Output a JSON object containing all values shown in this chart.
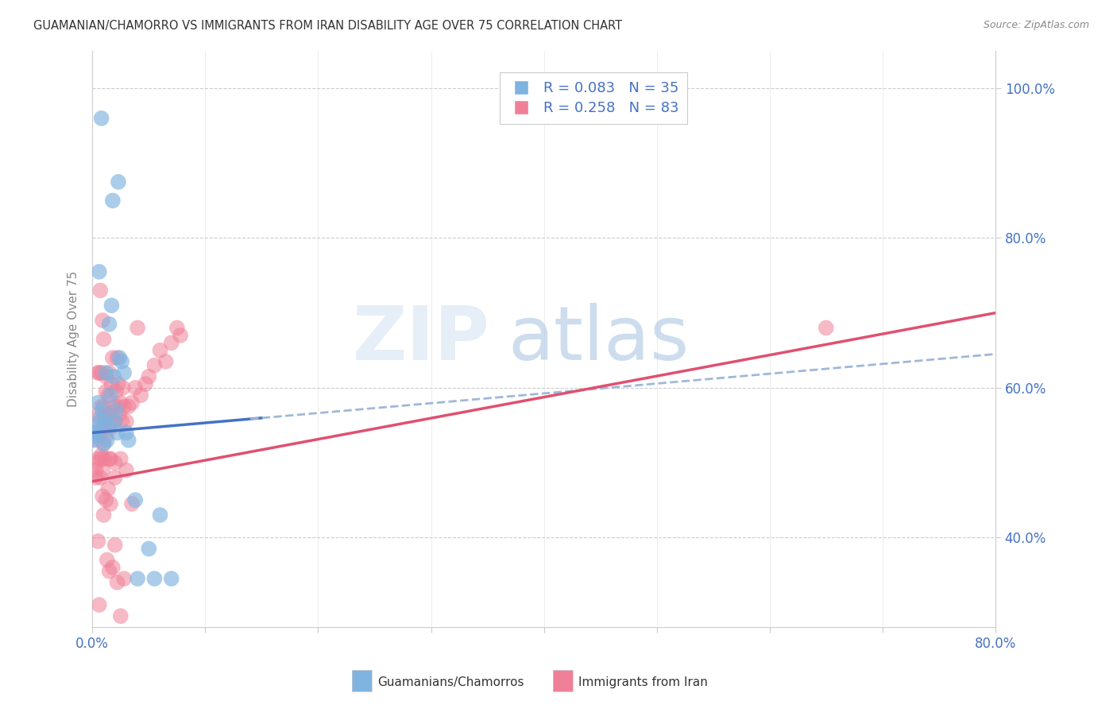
{
  "title": "GUAMANIAN/CHAMORRO VS IMMIGRANTS FROM IRAN DISABILITY AGE OVER 75 CORRELATION CHART",
  "source": "Source: ZipAtlas.com",
  "ylabel": "Disability Age Over 75",
  "legend_label1": "Guamanians/Chamorros",
  "legend_label2": "Immigrants from Iran",
  "legend_r1": "R = 0.083",
  "legend_n1": "N = 35",
  "legend_r2": "R = 0.258",
  "legend_n2": "N = 83",
  "xlim": [
    0.0,
    0.8
  ],
  "ylim": [
    0.28,
    1.05
  ],
  "yticks": [
    0.4,
    0.6,
    0.8,
    1.0
  ],
  "xticks": [
    0.0,
    0.1,
    0.2,
    0.3,
    0.4,
    0.5,
    0.6,
    0.7,
    0.8
  ],
  "color_blue": "#7fb3e0",
  "color_pink": "#f08098",
  "color_blue_line": "#4472c4",
  "color_pink_line": "#e05070",
  "color_blue_dash": "#a0b8d8",
  "watermark_zip": "ZIP",
  "watermark_atlas": "atlas",
  "blue_scatter_x": [
    0.005,
    0.008,
    0.018,
    0.006,
    0.012,
    0.015,
    0.014,
    0.013,
    0.01,
    0.011,
    0.016,
    0.009,
    0.007,
    0.004,
    0.003,
    0.002,
    0.001,
    0.0,
    0.021,
    0.022,
    0.026,
    0.028,
    0.032,
    0.038,
    0.04,
    0.05,
    0.055,
    0.06,
    0.07,
    0.023,
    0.017,
    0.019,
    0.02,
    0.024,
    0.03
  ],
  "blue_scatter_y": [
    0.58,
    0.96,
    0.85,
    0.755,
    0.62,
    0.685,
    0.55,
    0.53,
    0.525,
    0.555,
    0.59,
    0.57,
    0.56,
    0.55,
    0.54,
    0.54,
    0.535,
    0.53,
    0.57,
    0.54,
    0.635,
    0.62,
    0.53,
    0.45,
    0.345,
    0.385,
    0.345,
    0.43,
    0.345,
    0.875,
    0.71,
    0.615,
    0.555,
    0.64,
    0.54
  ],
  "pink_scatter_x": [
    0.003,
    0.004,
    0.005,
    0.006,
    0.006,
    0.007,
    0.007,
    0.008,
    0.008,
    0.009,
    0.009,
    0.01,
    0.01,
    0.011,
    0.011,
    0.012,
    0.012,
    0.013,
    0.014,
    0.015,
    0.015,
    0.016,
    0.017,
    0.018,
    0.018,
    0.019,
    0.02,
    0.021,
    0.022,
    0.022,
    0.023,
    0.024,
    0.025,
    0.026,
    0.027,
    0.028,
    0.03,
    0.032,
    0.035,
    0.038,
    0.04,
    0.043,
    0.047,
    0.05,
    0.055,
    0.06,
    0.065,
    0.07,
    0.075,
    0.078,
    0.65,
    0.01,
    0.005,
    0.008,
    0.012,
    0.007,
    0.009,
    0.006,
    0.011,
    0.004,
    0.003,
    0.014,
    0.016,
    0.013,
    0.02,
    0.018,
    0.022,
    0.015,
    0.025,
    0.03,
    0.035,
    0.028,
    0.02,
    0.015,
    0.01,
    0.008,
    0.005,
    0.006,
    0.009,
    0.012,
    0.016,
    0.02,
    0.025
  ],
  "pink_scatter_y": [
    0.49,
    0.53,
    0.505,
    0.535,
    0.565,
    0.48,
    0.555,
    0.51,
    0.575,
    0.49,
    0.545,
    0.525,
    0.575,
    0.505,
    0.565,
    0.535,
    0.595,
    0.555,
    0.59,
    0.545,
    0.62,
    0.565,
    0.605,
    0.555,
    0.64,
    0.575,
    0.555,
    0.595,
    0.575,
    0.64,
    0.605,
    0.565,
    0.58,
    0.555,
    0.6,
    0.575,
    0.555,
    0.575,
    0.58,
    0.6,
    0.68,
    0.59,
    0.605,
    0.615,
    0.63,
    0.65,
    0.635,
    0.66,
    0.68,
    0.67,
    0.68,
    0.665,
    0.62,
    0.62,
    0.615,
    0.73,
    0.69,
    0.62,
    0.56,
    0.5,
    0.48,
    0.465,
    0.445,
    0.37,
    0.39,
    0.36,
    0.34,
    0.355,
    0.505,
    0.49,
    0.445,
    0.345,
    0.48,
    0.505,
    0.43,
    0.505,
    0.395,
    0.31,
    0.455,
    0.45,
    0.505,
    0.5,
    0.295
  ],
  "blue_line_x0": 0.0,
  "blue_line_x1": 0.8,
  "blue_line_y0": 0.54,
  "blue_line_y1": 0.645,
  "pink_line_x0": 0.0,
  "pink_line_x1": 0.8,
  "pink_line_y0": 0.475,
  "pink_line_y1": 0.7
}
